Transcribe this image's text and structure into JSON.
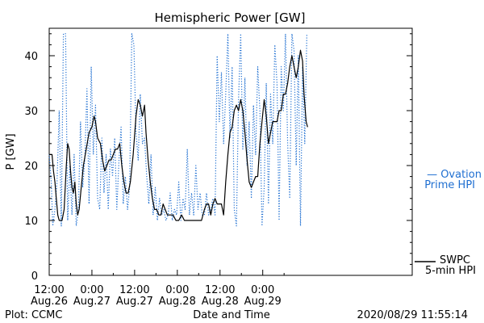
{
  "chart_data": {
    "type": "line",
    "title": "Hemispheric Power [GW]",
    "xlabel": "Date and Time",
    "ylabel": "P [GW]",
    "ylim": [
      0,
      45
    ],
    "xlim": [
      0,
      51
    ],
    "yticks": [
      0,
      10,
      20,
      30,
      40
    ],
    "xticks": [
      {
        "x": 0,
        "line1": "12:00",
        "line2": "Aug.26"
      },
      {
        "x": 6,
        "line1": "0:00",
        "line2": "Aug.27"
      },
      {
        "x": 12,
        "line1": "12:00",
        "line2": "Aug.27"
      },
      {
        "x": 18,
        "line1": "0:00",
        "line2": "Aug.28"
      },
      {
        "x": 24,
        "line1": "12:00",
        "line2": "Aug.28"
      },
      {
        "x": 30,
        "line1": "0:00",
        "line2": "Aug.29"
      }
    ],
    "x_units_note": "hours after 12:00 Aug.26",
    "grid": false,
    "footer_left": "Plot: CCMC",
    "footer_right": "2020/08/29 11:55:14",
    "legend": [
      {
        "line1": "— Ovation",
        "line2": "Prime HPI",
        "color": "#1f6fd1",
        "style": "dotted"
      },
      {
        "line1": "SWPC",
        "line2": "5-min HPI",
        "color": "#000000",
        "style": "solid"
      }
    ],
    "series": [
      {
        "name": "SWPC 5-min HPI",
        "color": "#000000",
        "style": "solid",
        "points": [
          [
            0,
            22
          ],
          [
            0.4,
            22
          ],
          [
            0.6,
            19
          ],
          [
            0.8,
            17
          ],
          [
            1.0,
            14
          ],
          [
            1.2,
            11
          ],
          [
            1.4,
            10
          ],
          [
            1.8,
            10
          ],
          [
            2.1,
            12
          ],
          [
            2.4,
            20
          ],
          [
            2.6,
            24
          ],
          [
            2.8,
            23
          ],
          [
            3.0,
            19
          ],
          [
            3.2,
            16
          ],
          [
            3.4,
            15
          ],
          [
            3.6,
            17
          ],
          [
            3.8,
            13
          ],
          [
            4.0,
            11
          ],
          [
            4.2,
            12
          ],
          [
            4.5,
            16
          ],
          [
            4.8,
            20
          ],
          [
            5.2,
            23
          ],
          [
            5.6,
            26
          ],
          [
            6.0,
            27
          ],
          [
            6.3,
            29
          ],
          [
            6.5,
            28
          ],
          [
            6.8,
            25
          ],
          [
            7.2,
            24
          ],
          [
            7.5,
            21
          ],
          [
            7.8,
            19
          ],
          [
            8.1,
            20
          ],
          [
            8.4,
            21
          ],
          [
            8.7,
            21
          ],
          [
            9.0,
            22
          ],
          [
            9.3,
            23
          ],
          [
            9.6,
            23
          ],
          [
            9.9,
            24
          ],
          [
            10.2,
            20
          ],
          [
            10.5,
            17
          ],
          [
            10.8,
            15
          ],
          [
            11.1,
            15
          ],
          [
            11.4,
            17
          ],
          [
            11.8,
            22
          ],
          [
            12.2,
            29
          ],
          [
            12.5,
            32
          ],
          [
            12.8,
            31
          ],
          [
            13.1,
            29
          ],
          [
            13.4,
            31
          ],
          [
            13.6,
            26
          ],
          [
            13.9,
            21
          ],
          [
            14.2,
            17
          ],
          [
            14.5,
            14
          ],
          [
            14.8,
            12
          ],
          [
            15.1,
            12
          ],
          [
            15.4,
            11
          ],
          [
            15.7,
            11
          ],
          [
            16.0,
            13
          ],
          [
            16.3,
            12
          ],
          [
            16.6,
            11
          ],
          [
            17.0,
            11
          ],
          [
            17.4,
            11
          ],
          [
            17.8,
            10
          ],
          [
            18.2,
            10
          ],
          [
            18.6,
            11
          ],
          [
            19.0,
            10
          ],
          [
            19.4,
            10
          ],
          [
            19.8,
            10
          ],
          [
            20.2,
            10
          ],
          [
            20.6,
            10
          ],
          [
            21.0,
            10
          ],
          [
            21.4,
            10
          ],
          [
            21.8,
            12
          ],
          [
            22.1,
            13
          ],
          [
            22.4,
            13
          ],
          [
            22.7,
            11
          ],
          [
            23.0,
            13
          ],
          [
            23.3,
            14
          ],
          [
            23.6,
            13
          ],
          [
            23.9,
            13
          ],
          [
            24.2,
            13
          ],
          [
            24.5,
            11
          ],
          [
            24.8,
            17
          ],
          [
            25.1,
            22
          ],
          [
            25.4,
            26
          ],
          [
            25.7,
            27
          ],
          [
            26.0,
            30
          ],
          [
            26.3,
            31
          ],
          [
            26.6,
            30
          ],
          [
            26.9,
            32
          ],
          [
            27.2,
            30
          ],
          [
            27.5,
            26
          ],
          [
            27.8,
            21
          ],
          [
            28.1,
            17
          ],
          [
            28.4,
            16
          ],
          [
            28.7,
            17
          ],
          [
            29.0,
            18
          ],
          [
            29.3,
            18
          ],
          [
            29.6,
            24
          ],
          [
            29.9,
            28
          ],
          [
            30.2,
            32
          ],
          [
            30.5,
            29
          ],
          [
            30.8,
            24
          ],
          [
            31.1,
            26
          ],
          [
            31.4,
            28
          ],
          [
            31.7,
            28
          ],
          [
            32.0,
            28
          ],
          [
            32.3,
            30
          ],
          [
            32.6,
            30
          ],
          [
            32.9,
            33
          ],
          [
            33.2,
            33
          ],
          [
            33.5,
            35
          ],
          [
            33.8,
            38
          ],
          [
            34.1,
            40
          ],
          [
            34.4,
            38
          ],
          [
            34.7,
            36
          ],
          [
            35.0,
            38
          ],
          [
            35.3,
            41
          ],
          [
            35.6,
            39
          ],
          [
            35.8,
            33
          ],
          [
            36.1,
            28
          ],
          [
            36.3,
            27
          ]
        ]
      },
      {
        "name": "Ovation Prime HPI",
        "color": "#1f6fd1",
        "style": "dotted",
        "points": [
          [
            0,
            22
          ],
          [
            0.3,
            17
          ],
          [
            0.5,
            9
          ],
          [
            0.8,
            12
          ],
          [
            1.1,
            17
          ],
          [
            1.4,
            30
          ],
          [
            1.7,
            9
          ],
          [
            2.0,
            44
          ],
          [
            2.3,
            44
          ],
          [
            2.6,
            10
          ],
          [
            2.9,
            20
          ],
          [
            3.2,
            11
          ],
          [
            3.5,
            22
          ],
          [
            3.8,
            9
          ],
          [
            4.1,
            12
          ],
          [
            4.4,
            28
          ],
          [
            4.7,
            16
          ],
          [
            5.0,
            21
          ],
          [
            5.3,
            34
          ],
          [
            5.6,
            13
          ],
          [
            5.9,
            38
          ],
          [
            6.2,
            22
          ],
          [
            6.5,
            31
          ],
          [
            6.8,
            14
          ],
          [
            7.1,
            12
          ],
          [
            7.4,
            25
          ],
          [
            7.7,
            15
          ],
          [
            8.0,
            22
          ],
          [
            8.3,
            12
          ],
          [
            8.6,
            23
          ],
          [
            8.9,
            18
          ],
          [
            9.2,
            25
          ],
          [
            9.5,
            12
          ],
          [
            9.8,
            21
          ],
          [
            10.1,
            27
          ],
          [
            10.4,
            13
          ],
          [
            10.7,
            18
          ],
          [
            11.0,
            12
          ],
          [
            11.3,
            16
          ],
          [
            11.6,
            44
          ],
          [
            11.9,
            42
          ],
          [
            12.2,
            26
          ],
          [
            12.5,
            21
          ],
          [
            12.8,
            33
          ],
          [
            13.1,
            24
          ],
          [
            13.4,
            25
          ],
          [
            13.7,
            18
          ],
          [
            14.0,
            13
          ],
          [
            14.3,
            22
          ],
          [
            14.6,
            11
          ],
          [
            14.9,
            16
          ],
          [
            15.2,
            10
          ],
          [
            15.5,
            14
          ],
          [
            15.8,
            11
          ],
          [
            16.1,
            12
          ],
          [
            16.4,
            10
          ],
          [
            16.7,
            11
          ],
          [
            17.0,
            15
          ],
          [
            17.3,
            10
          ],
          [
            17.6,
            12
          ],
          [
            17.9,
            11
          ],
          [
            18.2,
            17
          ],
          [
            18.5,
            10
          ],
          [
            18.8,
            14
          ],
          [
            19.1,
            12
          ],
          [
            19.4,
            23
          ],
          [
            19.7,
            11
          ],
          [
            20.0,
            15
          ],
          [
            20.3,
            11
          ],
          [
            20.6,
            20
          ],
          [
            20.9,
            12
          ],
          [
            21.2,
            15
          ],
          [
            21.5,
            11
          ],
          [
            21.8,
            11
          ],
          [
            22.1,
            15
          ],
          [
            22.4,
            11
          ],
          [
            22.7,
            12
          ],
          [
            23.0,
            14
          ],
          [
            23.3,
            11
          ],
          [
            23.6,
            40
          ],
          [
            23.9,
            28
          ],
          [
            24.2,
            37
          ],
          [
            24.5,
            24
          ],
          [
            24.8,
            33
          ],
          [
            25.1,
            44
          ],
          [
            25.4,
            25
          ],
          [
            25.7,
            38
          ],
          [
            26.0,
            12
          ],
          [
            26.3,
            9
          ],
          [
            26.6,
            32
          ],
          [
            26.9,
            44
          ],
          [
            27.2,
            23
          ],
          [
            27.5,
            36
          ],
          [
            27.8,
            20
          ],
          [
            28.1,
            28
          ],
          [
            28.4,
            14
          ],
          [
            28.7,
            31
          ],
          [
            29.0,
            22
          ],
          [
            29.3,
            38
          ],
          [
            29.6,
            30
          ],
          [
            29.9,
            9
          ],
          [
            30.2,
            16
          ],
          [
            30.5,
            35
          ],
          [
            30.8,
            13
          ],
          [
            31.1,
            33
          ],
          [
            31.4,
            24
          ],
          [
            31.7,
            42
          ],
          [
            32.0,
            35
          ],
          [
            32.3,
            10
          ],
          [
            32.6,
            38
          ],
          [
            32.9,
            30
          ],
          [
            33.2,
            44
          ],
          [
            33.5,
            24
          ],
          [
            33.8,
            14
          ],
          [
            34.1,
            44
          ],
          [
            34.4,
            41
          ],
          [
            34.7,
            20
          ],
          [
            35.0,
            40
          ],
          [
            35.3,
            9
          ],
          [
            35.6,
            38
          ],
          [
            35.9,
            24
          ],
          [
            36.2,
            44
          ]
        ]
      }
    ]
  }
}
